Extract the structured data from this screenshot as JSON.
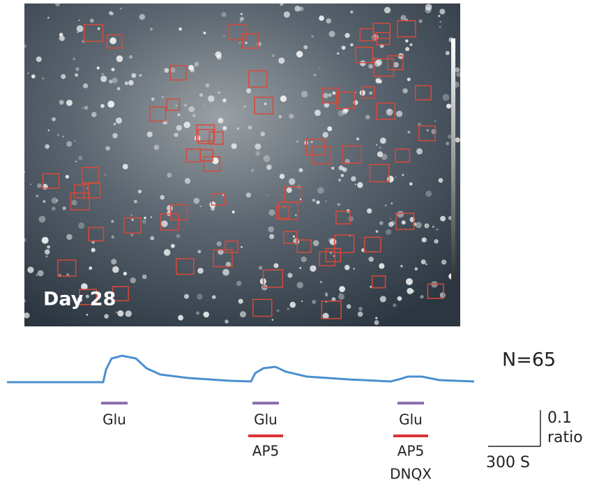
{
  "image": {
    "label": "Day 28"
  },
  "summary": {
    "label": "N=65"
  },
  "treatments": [
    {
      "lines": [
        "Glu"
      ]
    },
    {
      "lines": [
        "Glu",
        "AP5"
      ]
    },
    {
      "lines": [
        "Glu",
        "AP5",
        "DNQX"
      ]
    }
  ],
  "scale_bar": {
    "vertical": [
      "0.1",
      "ratio"
    ],
    "horizontal": "300 S"
  }
}
